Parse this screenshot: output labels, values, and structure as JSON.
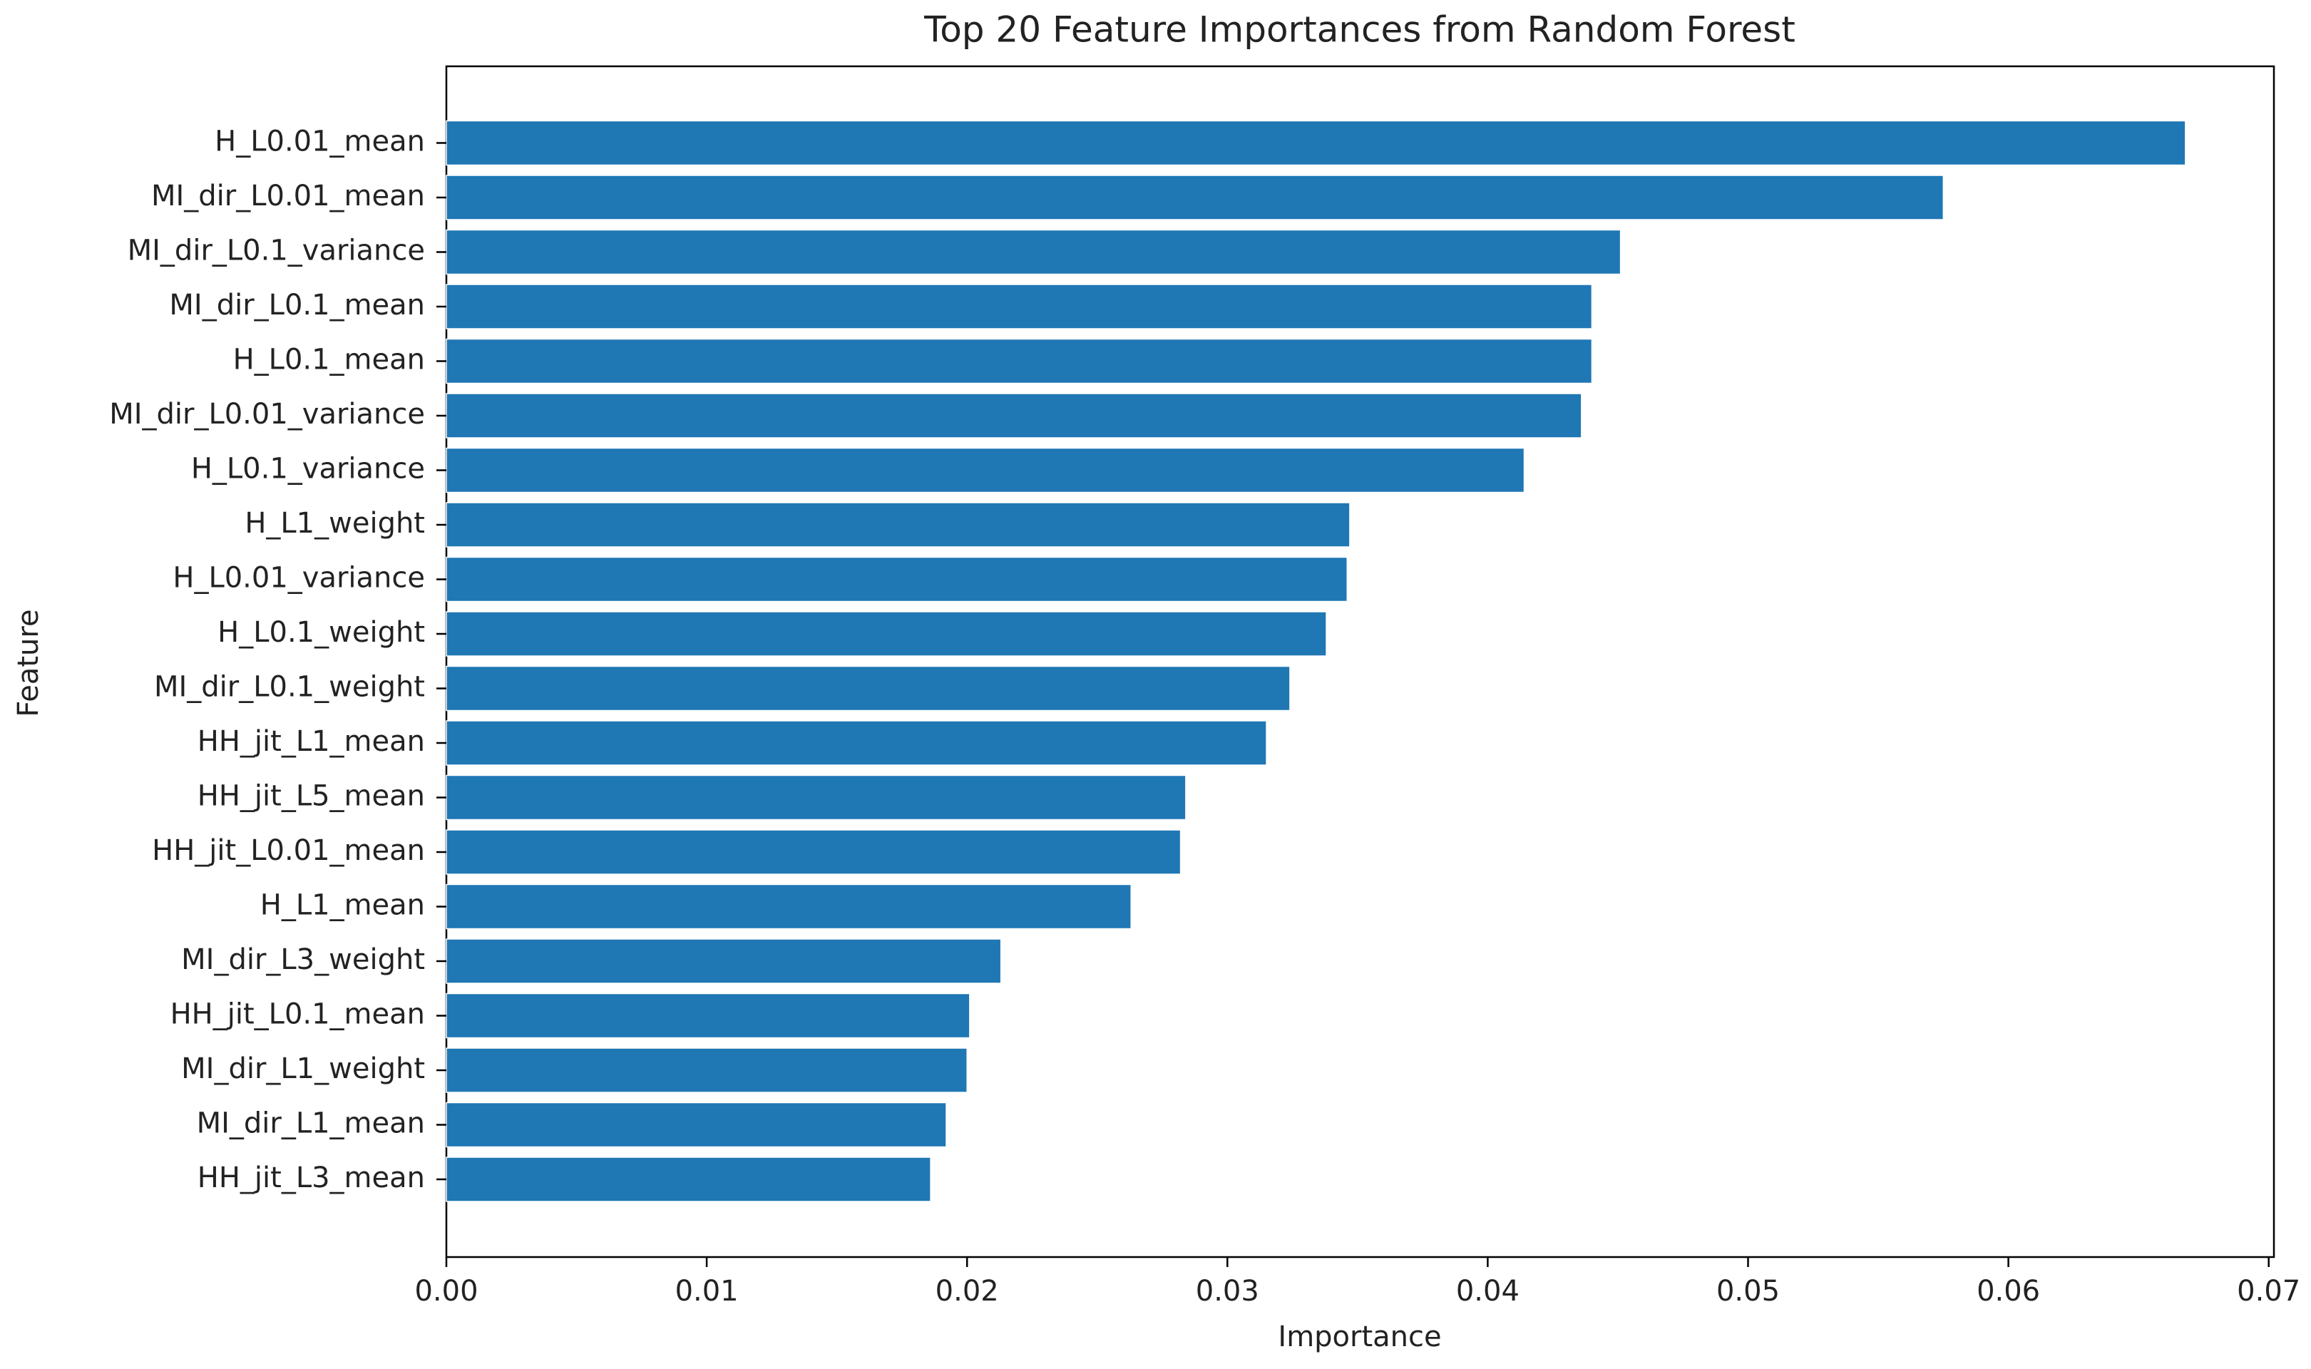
{
  "chart_data": {
    "type": "barh",
    "title": "Top 20 Feature Importances from Random Forest",
    "xlabel": "Importance",
    "ylabel": "Feature",
    "color": "#1f77b4",
    "categories": [
      "H_L0.01_mean",
      "MI_dir_L0.01_mean",
      "MI_dir_L0.1_variance",
      "MI_dir_L0.1_mean",
      "H_L0.1_mean",
      "MI_dir_L0.01_variance",
      "H_L0.1_variance",
      "H_L1_weight",
      "H_L0.01_variance",
      "H_L0.1_weight",
      "MI_dir_L0.1_weight",
      "HH_jit_L1_mean",
      "HH_jit_L5_mean",
      "HH_jit_L0.01_mean",
      "H_L1_mean",
      "MI_dir_L3_weight",
      "HH_jit_L0.1_mean",
      "MI_dir_L1_weight",
      "MI_dir_L1_mean",
      "HH_jit_L3_mean"
    ],
    "values": [
      0.0668,
      0.0575,
      0.0451,
      0.044,
      0.044,
      0.0436,
      0.0414,
      0.0347,
      0.0346,
      0.0338,
      0.0324,
      0.0315,
      0.0284,
      0.0282,
      0.0263,
      0.0213,
      0.0201,
      0.02,
      0.0192,
      0.0186
    ],
    "xlim": [
      0,
      0.0702
    ],
    "xticks": [
      {
        "value": 0,
        "label": "0.00"
      },
      0.01,
      0.02,
      0.03,
      0.04,
      0.05,
      0.06,
      0.07
    ]
  }
}
